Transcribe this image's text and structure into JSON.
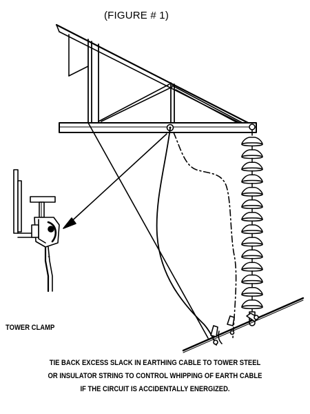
{
  "figure_label": "(FIGURE # 1)",
  "clamp_label": "TOWER CLAMP",
  "caption_lines": [
    "TIE BACK EXCESS SLACK IN EARTHING CABLE TO TOWER STEEL",
    "OR INSULATOR STRING TO CONTROL WHIPPING OF EARTH CABLE",
    "IF THE CIRCUIT IS ACCIDENTALLY ENERGIZED."
  ],
  "colors": {
    "ink": "#000000",
    "paper": "#ffffff"
  },
  "illustration": {
    "insulator_disc_count": 14
  }
}
